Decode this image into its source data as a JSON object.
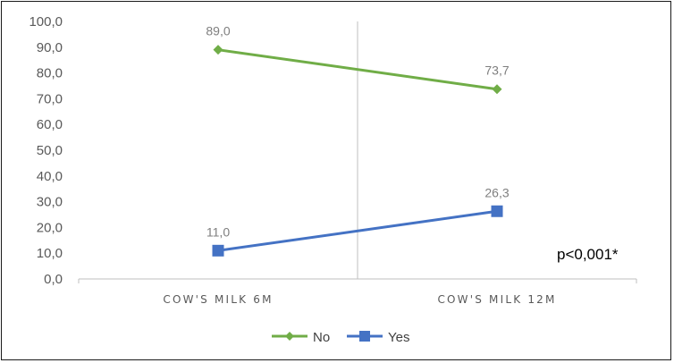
{
  "chart_data": {
    "type": "line",
    "categories": [
      "COW'S MILK 6M",
      "COW'S MILK 12M"
    ],
    "series": [
      {
        "name": "No",
        "values": [
          89.0,
          73.7
        ],
        "labels": [
          "89,0",
          "73,7"
        ],
        "color": "#70AD47",
        "marker": "diamond"
      },
      {
        "name": "Yes",
        "values": [
          11.0,
          26.3
        ],
        "labels": [
          "11,0",
          "26,3"
        ],
        "color": "#4472C4",
        "marker": "square"
      }
    ],
    "ylim": [
      0,
      100
    ],
    "yticks": [
      0,
      10,
      20,
      30,
      40,
      50,
      60,
      70,
      80,
      90,
      100
    ],
    "ytick_labels": [
      "0,0",
      "10,0",
      "20,0",
      "30,0",
      "40,0",
      "50,0",
      "60,0",
      "70,0",
      "80,0",
      "90,0",
      "100,0"
    ],
    "annotation": "p<0,001*",
    "legend_position": "bottom",
    "grid": false,
    "axis_color": "#BFBFBF"
  }
}
